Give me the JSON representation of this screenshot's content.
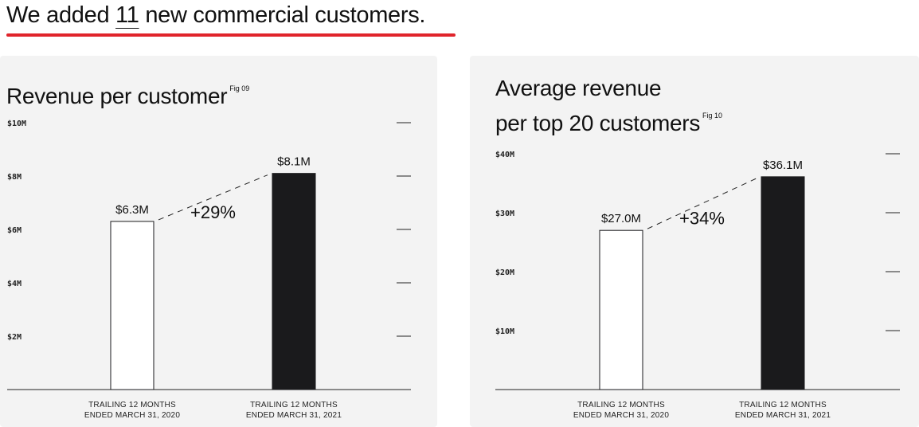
{
  "headline": {
    "prefix": "We added ",
    "number": "11",
    "suffix": " new commercial customers."
  },
  "colors": {
    "accent_rule": "#e0242b",
    "bar_dark": "#1a1a1c",
    "bar_light": "#ffffff",
    "card_bg": "#f3f3f3"
  },
  "chart_data": [
    {
      "type": "bar",
      "title": "Revenue per customer",
      "fig": "Fig 09",
      "categories": [
        "TRAILING 12 MONTHS ENDED MARCH 31, 2020",
        "TRAILING 12 MONTHS ENDED MARCH 31, 2021"
      ],
      "category_lines": [
        [
          "TRAILING 12 MONTHS",
          "ENDED MARCH 31, 2020"
        ],
        [
          "TRAILING 12 MONTHS",
          "ENDED MARCH 31, 2021"
        ]
      ],
      "values": [
        6.3,
        8.1
      ],
      "value_labels": [
        "$6.3M",
        "$8.1M"
      ],
      "change_label": "+29%",
      "ylim": [
        0,
        10
      ],
      "yticks": [
        2,
        4,
        6,
        8,
        10
      ],
      "ytick_labels": [
        "$2M",
        "$4M",
        "$6M",
        "$8M",
        "$10M"
      ],
      "grid": false
    },
    {
      "type": "bar",
      "title_lines": [
        "Average revenue",
        "per top 20 customers"
      ],
      "fig": "Fig 10",
      "categories": [
        "TRAILING 12 MONTHS ENDED MARCH 31, 2020",
        "TRAILING 12 MONTHS ENDED MARCH 31, 2021"
      ],
      "category_lines": [
        [
          "TRAILING 12 MONTHS",
          "ENDED MARCH 31, 2020"
        ],
        [
          "TRAILING 12 MONTHS",
          "ENDED MARCH 31, 2021"
        ]
      ],
      "values": [
        27.0,
        36.1
      ],
      "value_labels": [
        "$27.0M",
        "$36.1M"
      ],
      "change_label": "+34%",
      "ylim": [
        0,
        40
      ],
      "yticks": [
        10,
        20,
        30,
        40
      ],
      "ytick_labels": [
        "$10M",
        "$20M",
        "$30M",
        "$40M"
      ],
      "grid": false
    }
  ]
}
